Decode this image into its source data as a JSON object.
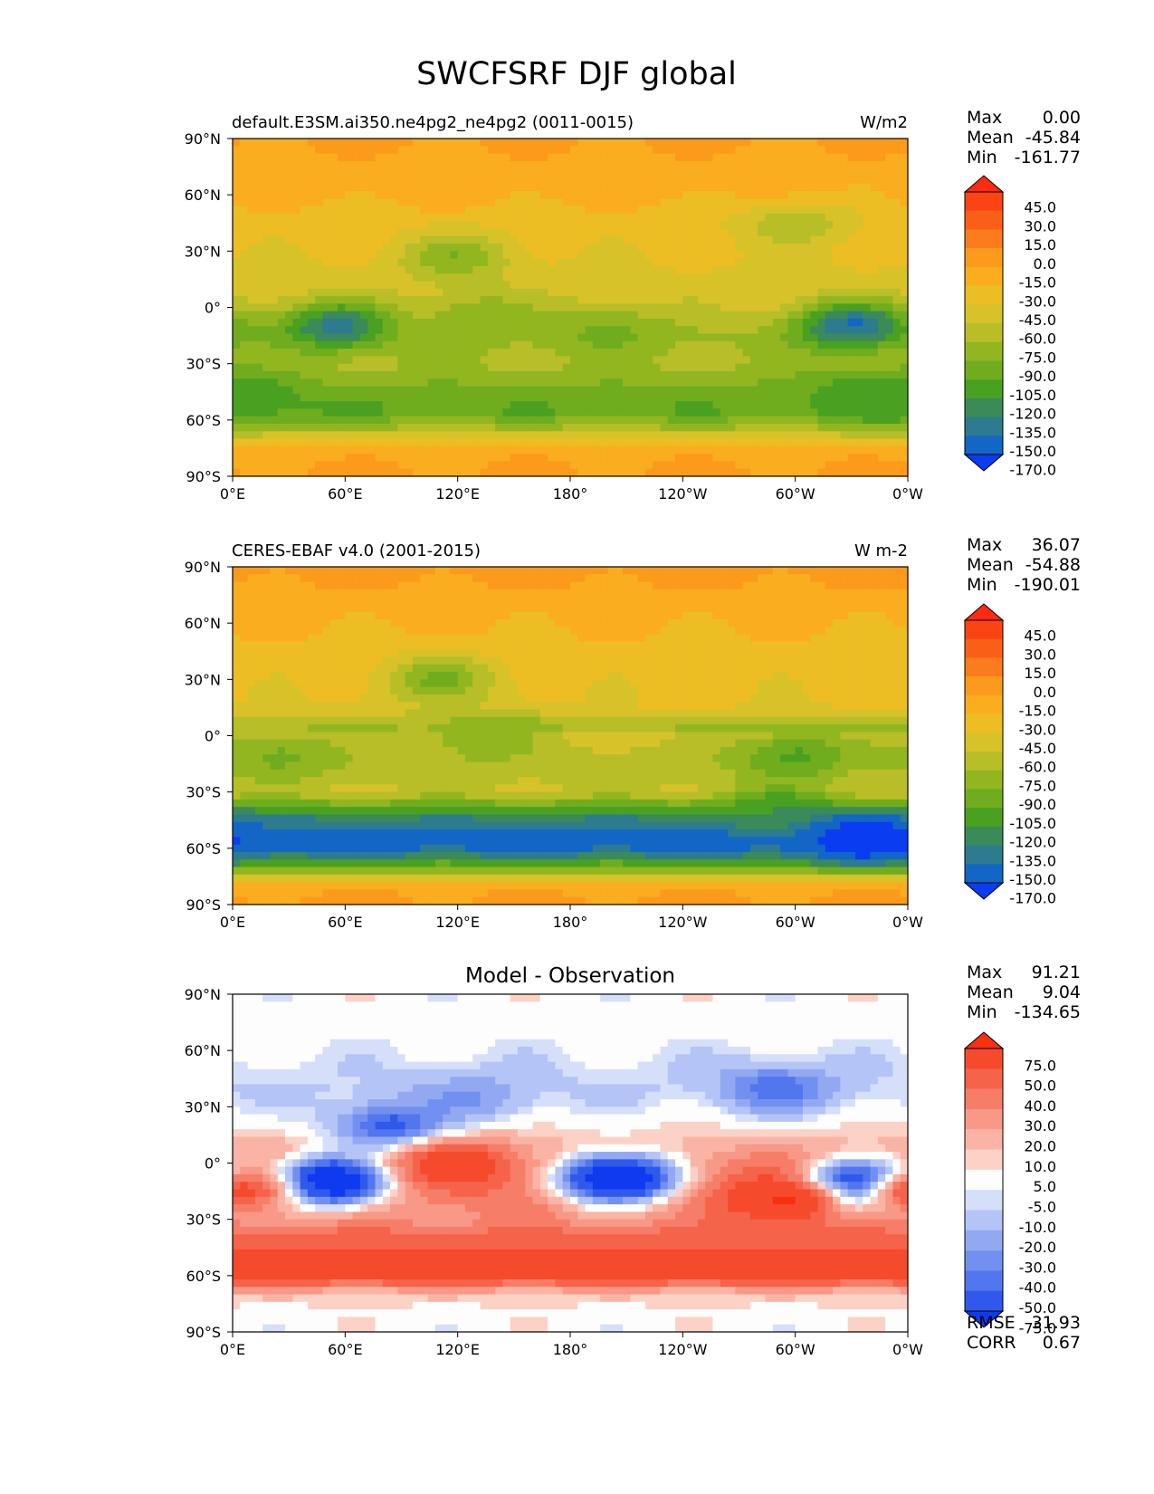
{
  "figure": {
    "title": "SWCFSRF DJF global"
  },
  "chart_data": [
    {
      "type": "heatmap",
      "panel": "test",
      "title": "",
      "left_label": "default.E3SM.ai350.ne4pg2_ne4pg2 (0011-0015)",
      "units": "W/m2",
      "xticks": [
        "0°E",
        "60°E",
        "120°E",
        "180°",
        "120°W",
        "60°W",
        "0°W"
      ],
      "yticks": [
        "90°N",
        "60°N",
        "30°N",
        "0°",
        "30°S",
        "60°S",
        "90°S"
      ],
      "xlim": [
        0,
        360
      ],
      "ylim": [
        -90,
        90
      ],
      "stats": {
        "max_label": "Max",
        "max": "0.00",
        "mean_label": "Mean",
        "mean": "-45.84",
        "min_label": "Min",
        "min": "-161.77"
      },
      "colorbar": {
        "labels": [
          "45.0",
          "30.0",
          "15.0",
          "0.0",
          "-15.0",
          "-30.0",
          "-45.0",
          "-60.0",
          "-75.0",
          "-90.0",
          "-105.0",
          "-120.0",
          "-135.0",
          "-150.0",
          "-170.0"
        ],
        "colors": [
          "#ff2a10",
          "#fb4413",
          "#fa5f18",
          "#fb7c1c",
          "#fb9a1b",
          "#f9ad1f",
          "#edbd24",
          "#d7c229",
          "#b7be27",
          "#92b61f",
          "#6fad1f",
          "#4aa021",
          "#3a8a5a",
          "#2d7b8e",
          "#1266c6",
          "#0a3cf2"
        ]
      },
      "zonal_profile": {
        "lat": [
          90,
          75,
          60,
          45,
          30,
          15,
          0,
          -15,
          -30,
          -45,
          -55,
          -65,
          -75,
          -90
        ],
        "value": [
          -12,
          -20,
          -25,
          -38,
          -42,
          -50,
          -55,
          -75,
          -72,
          -95,
          -105,
          -70,
          -20,
          -12
        ]
      },
      "features": [
        {
          "lon": 55,
          "lat": -10,
          "value": -140
        },
        {
          "lon": 330,
          "lat": -10,
          "value": -150
        },
        {
          "lon": 130,
          "lat": -5,
          "value": -90
        },
        {
          "lon": 200,
          "lat": -12,
          "value": -95
        },
        {
          "lon": 340,
          "lat": -45,
          "value": -120
        },
        {
          "lon": 10,
          "lat": -50,
          "value": -115
        },
        {
          "lon": 120,
          "lat": 27,
          "value": -85
        },
        {
          "lon": 300,
          "lat": 45,
          "value": -70
        }
      ]
    },
    {
      "type": "heatmap",
      "panel": "reference",
      "title": "",
      "left_label": "CERES-EBAF v4.0 (2001-2015)",
      "units": "W m-2",
      "xticks": [
        "0°E",
        "60°E",
        "120°E",
        "180°",
        "120°W",
        "60°W",
        "0°W"
      ],
      "yticks": [
        "90°N",
        "60°N",
        "30°N",
        "0°",
        "30°S",
        "60°S",
        "90°S"
      ],
      "xlim": [
        0,
        360
      ],
      "ylim": [
        -90,
        90
      ],
      "stats": {
        "max_label": "Max",
        "max": "36.07",
        "mean_label": "Mean",
        "mean": "-54.88",
        "min_label": "Min",
        "min": "-190.01"
      },
      "colorbar": {
        "labels": [
          "45.0",
          "30.0",
          "15.0",
          "0.0",
          "-15.0",
          "-30.0",
          "-45.0",
          "-60.0",
          "-75.0",
          "-90.0",
          "-105.0",
          "-120.0",
          "-135.0",
          "-150.0",
          "-170.0"
        ],
        "colors": [
          "#ff2a10",
          "#fb4413",
          "#fa5f18",
          "#fb7c1c",
          "#fb9a1b",
          "#f9ad1f",
          "#edbd24",
          "#d7c229",
          "#b7be27",
          "#92b61f",
          "#6fad1f",
          "#4aa021",
          "#3a8a5a",
          "#2d7b8e",
          "#1266c6",
          "#0a3cf2"
        ]
      },
      "zonal_profile": {
        "lat": [
          90,
          80,
          65,
          45,
          30,
          15,
          5,
          0,
          -15,
          -30,
          -45,
          -55,
          -62,
          -70,
          -80,
          -90
        ],
        "value": [
          -8,
          -15,
          -25,
          -35,
          -40,
          -45,
          -75,
          -55,
          -70,
          -60,
          -140,
          -165,
          -150,
          -95,
          -20,
          -10
        ]
      },
      "features": [
        {
          "lon": 300,
          "lat": -10,
          "value": -110
        },
        {
          "lon": 25,
          "lat": -10,
          "value": -95
        },
        {
          "lon": 130,
          "lat": 0,
          "value": -90
        },
        {
          "lon": 110,
          "lat": 30,
          "value": -90
        },
        {
          "lon": 290,
          "lat": -40,
          "value": -115
        },
        {
          "lon": 335,
          "lat": -55,
          "value": -185
        }
      ]
    },
    {
      "type": "heatmap",
      "panel": "difference",
      "title": "Model - Observation",
      "left_label": "",
      "units": "",
      "xticks": [
        "0°E",
        "60°E",
        "120°E",
        "180°",
        "120°W",
        "60°W",
        "0°W"
      ],
      "yticks": [
        "90°N",
        "60°N",
        "30°N",
        "0°",
        "30°S",
        "60°S",
        "90°S"
      ],
      "xlim": [
        0,
        360
      ],
      "ylim": [
        -90,
        90
      ],
      "stats": {
        "max_label": "Max",
        "max": "91.21",
        "mean_label": "Mean",
        "mean": "9.04",
        "min_label": "Min",
        "min": "-134.65"
      },
      "extra_stats": {
        "rmse_label": "RMSE",
        "rmse": "31.93",
        "corr_label": "CORR",
        "corr": "0.67"
      },
      "colorbar": {
        "labels": [
          "75.0",
          "50.0",
          "40.0",
          "30.0",
          "20.0",
          "10.0",
          "5.0",
          "-5.0",
          "-10.0",
          "-20.0",
          "-30.0",
          "-40.0",
          "-50.0",
          "-75.0"
        ],
        "colors": [
          "#f7300f",
          "#f64a2c",
          "#f5634a",
          "#f67d67",
          "#f89886",
          "#fab4a5",
          "#fcd2c7",
          "#fdfdfd",
          "#d6dffa",
          "#b4c4f6",
          "#92a9f2",
          "#7290f0",
          "#5276ee",
          "#3059ec",
          "#0f3af0"
        ]
      },
      "zonal_profile": {
        "lat": [
          90,
          70,
          50,
          40,
          30,
          15,
          0,
          -10,
          -20,
          -30,
          -40,
          -50,
          -60,
          -70,
          -80,
          -90
        ],
        "value": [
          0,
          0,
          -8,
          -10,
          -5,
          10,
          35,
          40,
          35,
          30,
          45,
          55,
          65,
          10,
          2,
          0
        ]
      },
      "features": [
        {
          "lon": 50,
          "lat": -10,
          "value": -125
        },
        {
          "lon": 205,
          "lat": -8,
          "value": -120
        },
        {
          "lon": 335,
          "lat": -12,
          "value": -120
        },
        {
          "lon": 85,
          "lat": 20,
          "value": -60
        },
        {
          "lon": 290,
          "lat": 40,
          "value": -45
        },
        {
          "lon": 130,
          "lat": 35,
          "value": -30
        },
        {
          "lon": 295,
          "lat": -20,
          "value": 80
        },
        {
          "lon": 120,
          "lat": 0,
          "value": 60
        },
        {
          "lon": 5,
          "lat": -15,
          "value": 55
        }
      ]
    }
  ]
}
